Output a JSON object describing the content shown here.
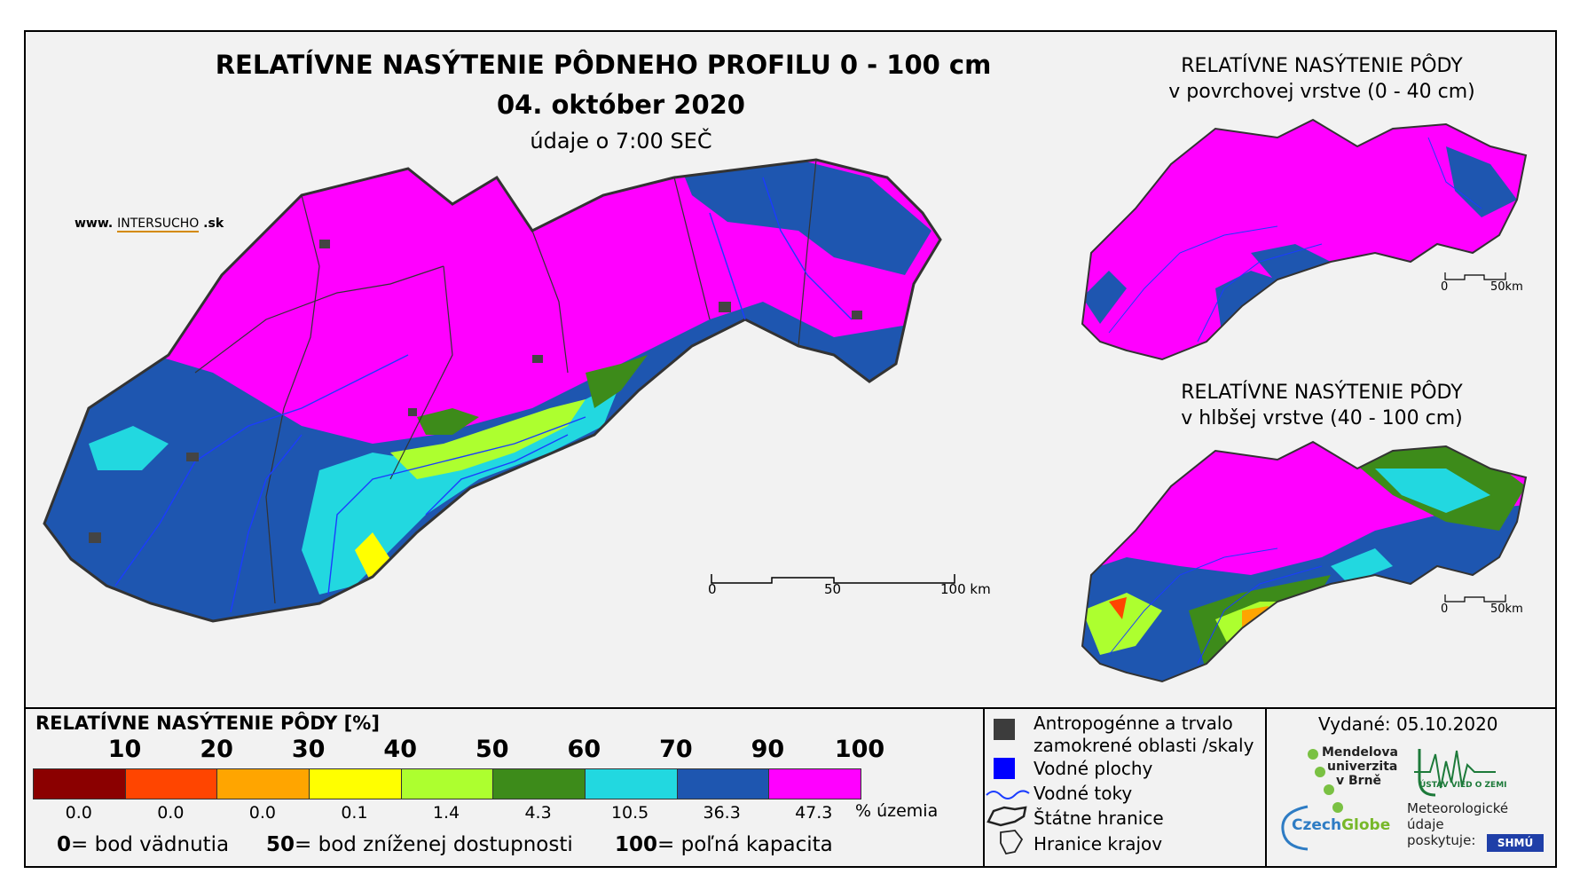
{
  "main_map": {
    "title": "RELATÍVNE NASÝTENIE PÔDNEHO PROFILU 0 - 100 cm",
    "date": "04. október 2020",
    "time_note": "údaje o 7:00 SEČ",
    "website_prefix": "www.",
    "website_brand": "INTERSUCHO",
    "website_suffix": ".sk",
    "scale_labels": [
      "0",
      "50",
      "100 km"
    ]
  },
  "inset_top": {
    "title_line1": "RELATÍVNE NASÝTENIE PÔDY",
    "title_line2": "v povrchovej vrstve (0 - 40 cm)",
    "scale_labels": [
      "0",
      "50km"
    ]
  },
  "inset_bottom": {
    "title_line1": "RELATÍVNE NASÝTENIE PÔDY",
    "title_line2": "v hlbšej vrstve (40 - 100 cm)",
    "scale_labels": [
      "0",
      "50km"
    ]
  },
  "legend": {
    "title": "RELATÍVNE NASÝTENIE PÔDY [%]",
    "ticks": [
      "10",
      "20",
      "30",
      "40",
      "50",
      "60",
      "70",
      "90",
      "100"
    ],
    "classes": [
      {
        "color": "#8b0000",
        "share": "0.0"
      },
      {
        "color": "#ff4500",
        "share": "0.0"
      },
      {
        "color": "#ffa500",
        "share": "0.0"
      },
      {
        "color": "#ffff00",
        "share": "0.1"
      },
      {
        "color": "#adff2f",
        "share": "1.4"
      },
      {
        "color": "#3d8b1a",
        "share": "4.3"
      },
      {
        "color": "#22d8e0",
        "share": "10.5"
      },
      {
        "color": "#1e56b0",
        "share": "36.3"
      },
      {
        "color": "#ff00ff",
        "share": "47.3"
      }
    ],
    "share_unit": "% územia",
    "notes": [
      {
        "value": "0",
        "text": "= bod vädnutia"
      },
      {
        "value": "50",
        "text": "= bod zníženej dostupnosti"
      },
      {
        "value": "100",
        "text": "= poľná kapacita"
      }
    ]
  },
  "symbols": {
    "urban_line1": "Antropogénne a trvalo",
    "urban_line2": "zamokrené oblasti /skaly",
    "water_bodies": "Vodné plochy",
    "rivers": "Vodné toky",
    "borders": "Štátne hranice",
    "regions": "Hranice krajov"
  },
  "credits": {
    "issued": "Vydané: 05.10.2020",
    "mendel_line1": "Mendelova",
    "mendel_line2": "univerzita",
    "mendel_line3": "v Brně",
    "ustav": "ÚSTAV VIED O ZEMI",
    "czechglobe_a": "Czech",
    "czechglobe_b": "Globe",
    "met_line1": "Meteorologické",
    "met_line2": "údaje",
    "met_line3": "poskytuje:",
    "shmu": "SHMÚ"
  }
}
